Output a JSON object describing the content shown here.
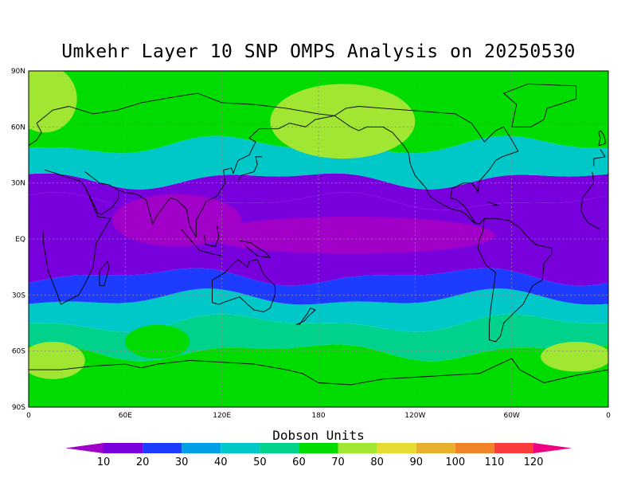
{
  "title": "Umkehr Layer 10 SNP OMPS Analysis on 20250530",
  "chart_data": {
    "type": "heatmap",
    "title": "Umkehr Layer 10 SNP OMPS Analysis on 20250530",
    "x_ticks": [
      "0",
      "60E",
      "120E",
      "180",
      "120W",
      "60W",
      "0"
    ],
    "y_ticks": [
      "90N",
      "60N",
      "30N",
      "EQ",
      "30S",
      "60S",
      "90S"
    ],
    "xlim": [
      0,
      360
    ],
    "ylim": [
      -90,
      90
    ],
    "grid": true,
    "colorbar": {
      "label": "Dobson Units",
      "ticks": [
        "10",
        "20",
        "30",
        "40",
        "50",
        "60",
        "70",
        "80",
        "90",
        "100",
        "110",
        "120"
      ],
      "colors": [
        "#a000c8",
        "#7800dc",
        "#1e3cff",
        "#00a0e6",
        "#00c8c8",
        "#00d28c",
        "#00dc00",
        "#a0e632",
        "#e6dc32",
        "#e6af2d",
        "#f08228",
        "#fa3c3c",
        "#f00082"
      ]
    },
    "zonal_bands_DU": [
      {
        "lat_range": [
          -90,
          -60
        ],
        "value": 65
      },
      {
        "lat_range": [
          -60,
          -45
        ],
        "value": 55
      },
      {
        "lat_range": [
          -45,
          -32
        ],
        "value": 40
      },
      {
        "lat_range": [
          -32,
          -20
        ],
        "value": 25
      },
      {
        "lat_range": [
          -20,
          20
        ],
        "value": 10
      },
      {
        "lat_range": [
          20,
          32
        ],
        "value": 15
      },
      {
        "lat_range": [
          32,
          50
        ],
        "value": 40
      },
      {
        "lat_range": [
          50,
          90
        ],
        "value": 65
      }
    ]
  }
}
